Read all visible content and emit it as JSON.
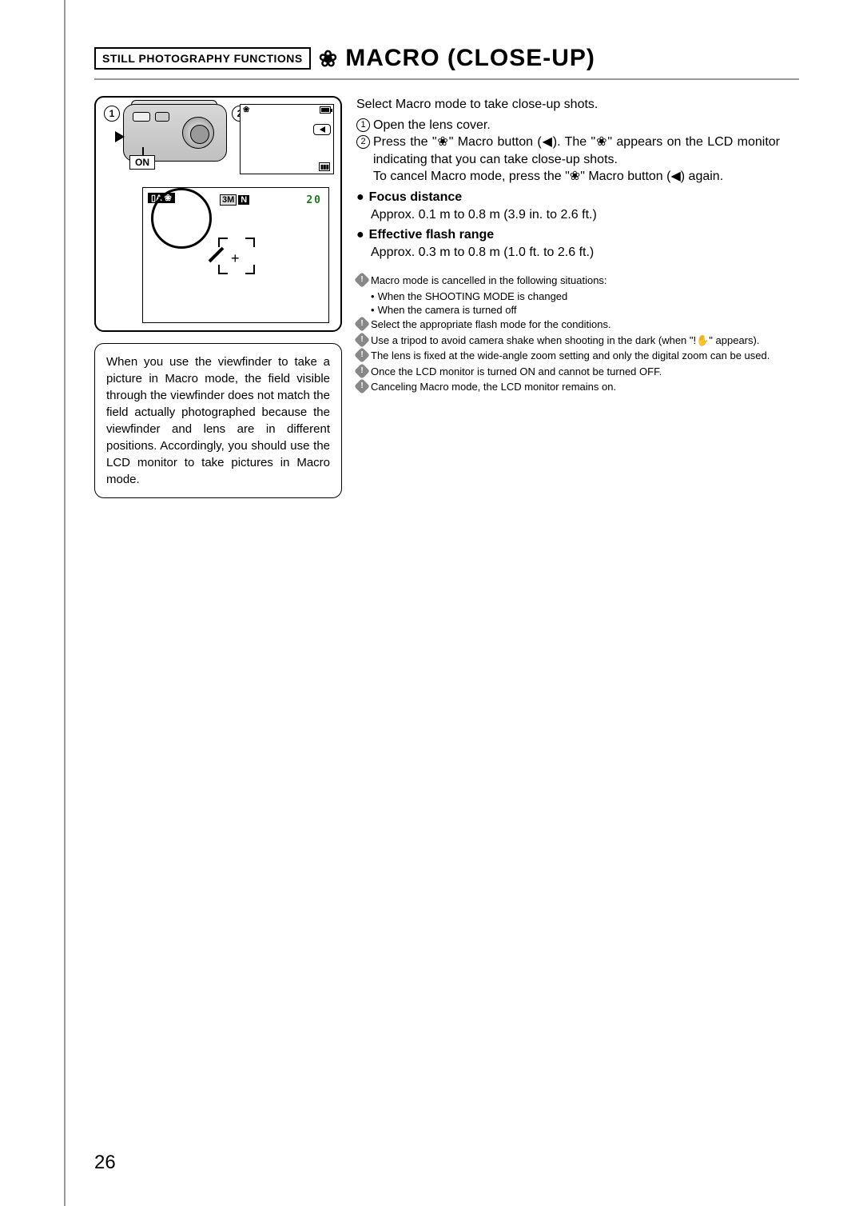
{
  "header": {
    "badge": "STILL PHOTOGRAPHY FUNCTIONS",
    "title": "MACRO (CLOSE-UP)"
  },
  "diagram": {
    "callout1": "1",
    "callout2": "2",
    "on_label": "ON",
    "lcd_people": "▮▮▮",
    "lcd2_badge": "▯A ❀",
    "lcd2_3m": "3M",
    "lcd2_n": "N",
    "lcd2_count": "20",
    "lcd2_cross": "+"
  },
  "note_box": "When you use the viewfinder to take a picture in Macro mode, the field visible through the viewfinder does not match the field actually photographed because the viewfinder and lens are in different positions. Accordingly, you should use the LCD monitor to take pictures in Macro mode.",
  "right": {
    "intro": "Select Macro mode to take close-up shots.",
    "step1": "Open the lens cover.",
    "step2a": "Press the \"❀\" Macro button (◀). The \"❀\" appears on the LCD monitor indicating that you can take close-up shots.",
    "step2b": "To cancel Macro mode, press the \"❀\" Macro button (◀) again.",
    "spec1_label": "Focus distance",
    "spec1_val": "Approx. 0.1 m to 0.8 m (3.9 in. to 2.6 ft.)",
    "spec2_label": "Effective flash range",
    "spec2_val": "Approx. 0.3 m to 0.8 m (1.0 ft. to 2.6 ft.)",
    "notes": [
      "Macro mode is cancelled in the following situations:",
      "Select the appropriate flash mode for the conditions.",
      "Use a tripod to avoid camera shake when shooting in the dark (when \"!✋\" appears).",
      "The lens is fixed at the wide-angle zoom setting and only the digital zoom can be used.",
      "Once the LCD monitor is turned ON and cannot be turned OFF.",
      "Canceling Macro mode, the LCD monitor remains on."
    ],
    "note0_subs": [
      "When the SHOOTING MODE is changed",
      "When the camera is turned off"
    ]
  },
  "page_number": "26"
}
